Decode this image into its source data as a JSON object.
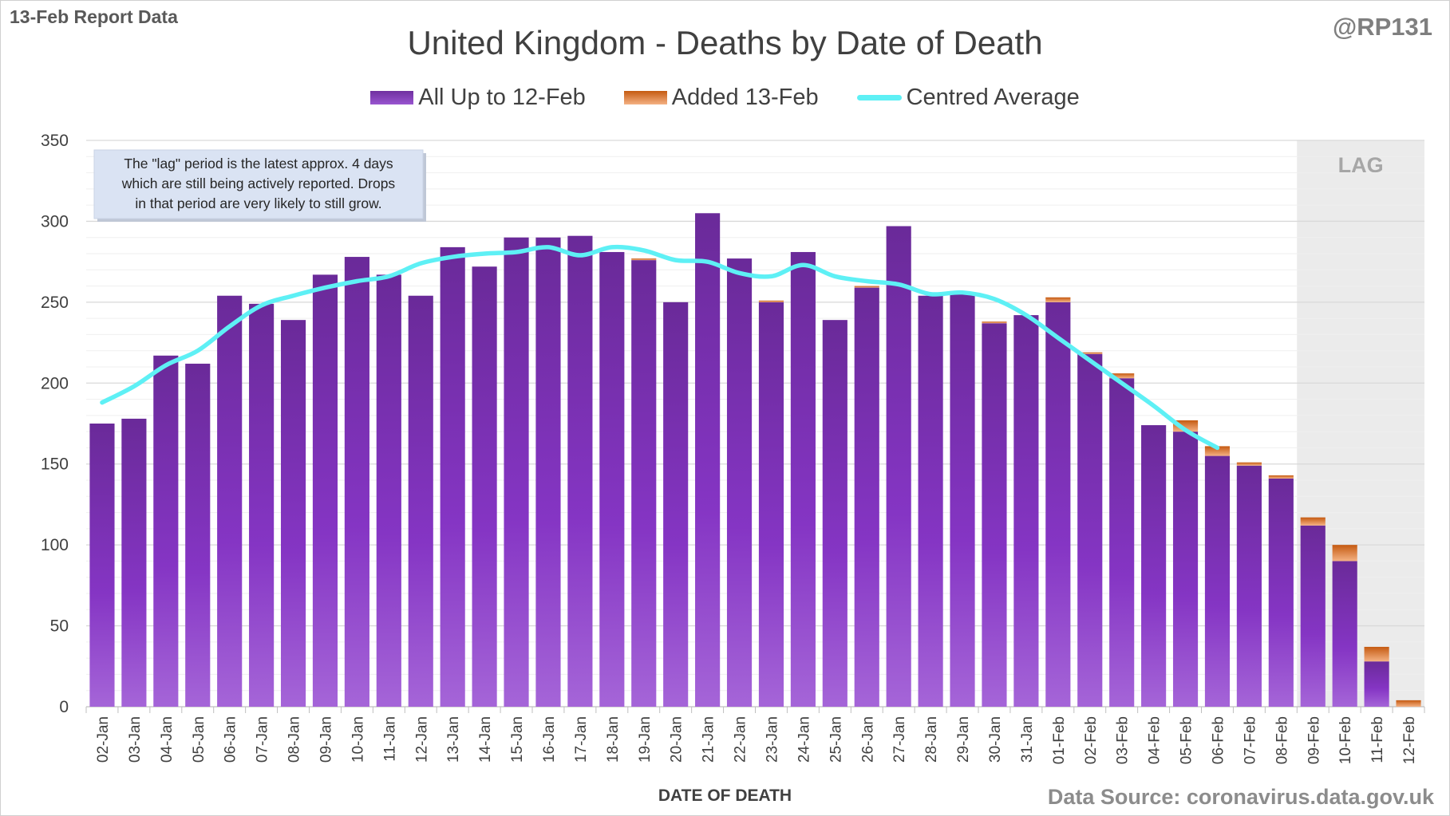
{
  "header": {
    "report_label": "13-Feb Report Data",
    "handle": "@RP131"
  },
  "footer": {
    "source": "Data Source: coronavirus.data.gov.uk"
  },
  "colors": {
    "base_bar": "#7030a0",
    "added_bar": "#c55a11",
    "average_line": "#5ef0f5",
    "lag_region": "#ebebeb",
    "gridline": "#d9d9d9"
  },
  "chart_data": {
    "type": "bar",
    "title": "United Kingdom - Deaths by Date of Death",
    "xlabel": "DATE OF DEATH",
    "ylabel": "",
    "ylim": [
      0,
      350
    ],
    "yticks": [
      0,
      50,
      100,
      150,
      200,
      250,
      300,
      350
    ],
    "stacked": true,
    "grid": true,
    "legend_position": "top-center",
    "categories": [
      "02-Jan",
      "03-Jan",
      "04-Jan",
      "05-Jan",
      "06-Jan",
      "07-Jan",
      "08-Jan",
      "09-Jan",
      "10-Jan",
      "11-Jan",
      "12-Jan",
      "13-Jan",
      "14-Jan",
      "15-Jan",
      "16-Jan",
      "17-Jan",
      "18-Jan",
      "19-Jan",
      "20-Jan",
      "21-Jan",
      "22-Jan",
      "23-Jan",
      "24-Jan",
      "25-Jan",
      "26-Jan",
      "27-Jan",
      "28-Jan",
      "29-Jan",
      "30-Jan",
      "31-Jan",
      "01-Feb",
      "02-Feb",
      "03-Feb",
      "04-Feb",
      "05-Feb",
      "06-Feb",
      "07-Feb",
      "08-Feb",
      "09-Feb",
      "10-Feb",
      "11-Feb",
      "12-Feb"
    ],
    "series": [
      {
        "name": "All Up to 12-Feb",
        "type": "bar",
        "values": [
          175,
          178,
          217,
          212,
          254,
          249,
          239,
          267,
          278,
          267,
          254,
          284,
          272,
          290,
          290,
          291,
          281,
          276,
          250,
          305,
          277,
          250,
          281,
          239,
          259,
          297,
          254,
          256,
          237,
          242,
          250,
          218,
          203,
          174,
          170,
          155,
          149,
          141,
          112,
          90,
          28,
          0
        ]
      },
      {
        "name": "Added 13-Feb",
        "type": "bar",
        "values": [
          0,
          0,
          0,
          0,
          0,
          0,
          0,
          0,
          0,
          0,
          0,
          0,
          0,
          0,
          0,
          0,
          0,
          1,
          0,
          0,
          0,
          1,
          0,
          0,
          1,
          0,
          0,
          0,
          1,
          0,
          3,
          1,
          3,
          0,
          7,
          6,
          2,
          2,
          5,
          10,
          9,
          4
        ]
      },
      {
        "name": "Centred Average",
        "type": "line",
        "values": [
          188,
          198,
          211,
          220,
          235,
          248,
          254,
          259,
          263,
          266,
          274,
          278,
          280,
          281,
          284,
          279,
          284,
          282,
          276,
          275,
          268,
          266,
          273,
          266,
          263,
          261,
          255,
          256,
          252,
          242,
          228,
          214,
          200,
          186,
          171,
          160,
          null,
          null,
          null,
          null,
          null,
          null
        ]
      }
    ],
    "lag_region": {
      "label": "LAG",
      "start": "09-Feb",
      "end": "12-Feb"
    },
    "annotation": {
      "lines": [
        "The \"lag\" period is the latest approx. 4 days",
        "which are still being actively reported.  Drops",
        "in that period are very likely to still grow."
      ]
    }
  }
}
